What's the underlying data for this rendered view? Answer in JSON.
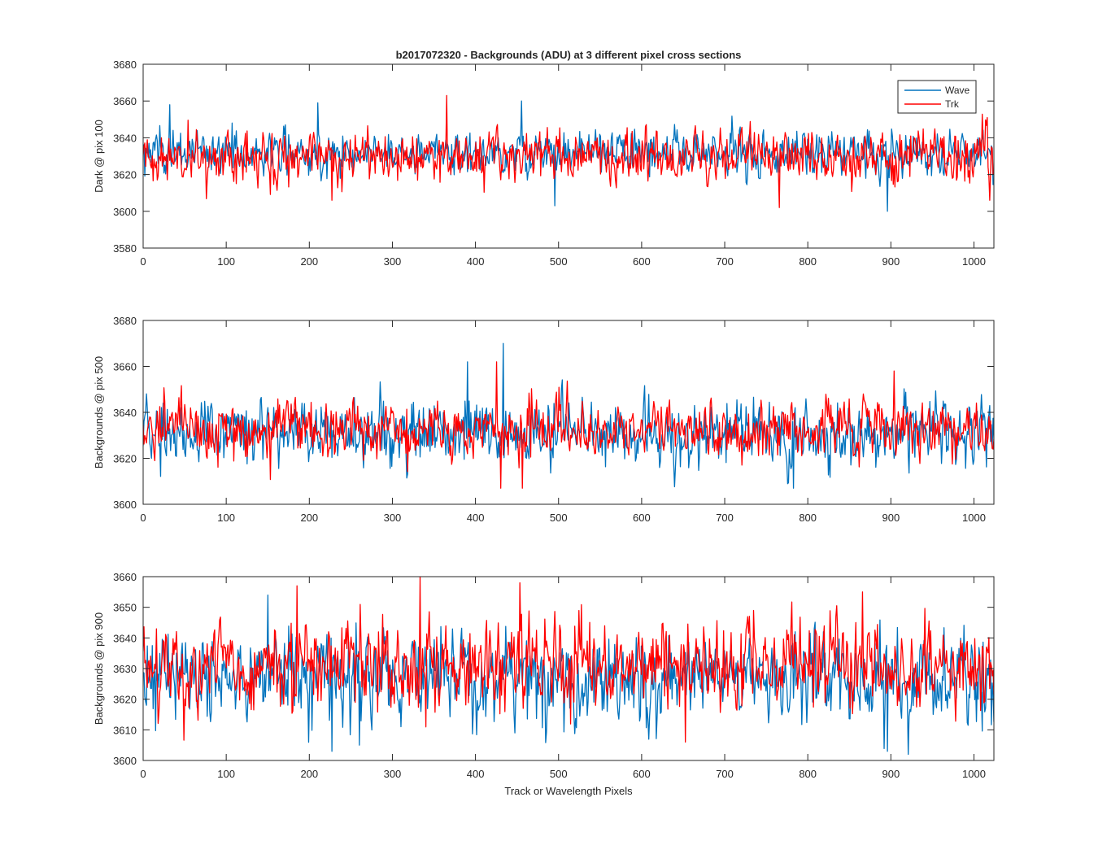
{
  "figure": {
    "title": "b2017072320 - Backgrounds (ADU) at 3 different pixel cross sections",
    "xlabel": "Track or Wavelength Pixels"
  },
  "legend": {
    "location": "top-right",
    "entries": [
      "Wave",
      "Trk"
    ]
  },
  "chart_data": [
    {
      "type": "line",
      "title": "b2017072320 - Backgrounds (ADU) at 3 different pixel cross sections",
      "xlabel": "",
      "ylabel": "Dark @ pix 100",
      "xlim": [
        0,
        1024
      ],
      "ylim": [
        3580,
        3680
      ],
      "xticks": [
        0,
        100,
        200,
        300,
        400,
        500,
        600,
        700,
        800,
        900,
        1000
      ],
      "yticks": [
        3580,
        3600,
        3620,
        3640,
        3660,
        3680
      ],
      "n_points": 1024,
      "series": [
        {
          "name": "Wave",
          "color": "#0072BD",
          "mean": 3632,
          "noise_sd": 6,
          "features": [
            {
              "x": 32,
              "y": 3658
            },
            {
              "x": 210,
              "y": 3659
            },
            {
              "x": 455,
              "y": 3660
            },
            {
              "x": 895,
              "y": 3600
            },
            {
              "x": 495,
              "y": 3603
            }
          ]
        },
        {
          "name": "Trk",
          "color": "#FF0000",
          "mean": 3630,
          "noise_sd": 7,
          "features": [
            {
              "x": 365,
              "y": 3663
            },
            {
              "x": 227,
              "y": 3606
            },
            {
              "x": 765,
              "y": 3602
            },
            {
              "x": 1015,
              "y": 3651
            },
            {
              "x": 1018,
              "y": 3606
            }
          ]
        }
      ]
    },
    {
      "type": "line",
      "title": "",
      "xlabel": "",
      "ylabel": "Backgrounds @ pix 500",
      "xlim": [
        0,
        1024
      ],
      "ylim": [
        3600,
        3680
      ],
      "xticks": [
        0,
        100,
        200,
        300,
        400,
        500,
        600,
        700,
        800,
        900,
        1000
      ],
      "yticks": [
        3600,
        3620,
        3640,
        3660,
        3680
      ],
      "n_points": 1024,
      "series": [
        {
          "name": "Wave",
          "color": "#0072BD",
          "mean": 3631,
          "noise_sd": 7,
          "features": [
            {
              "x": 433,
              "y": 3670
            },
            {
              "x": 390,
              "y": 3662
            },
            {
              "x": 782,
              "y": 3607
            }
          ]
        },
        {
          "name": "Trk",
          "color": "#FF0000",
          "mean": 3633,
          "noise_sd": 6,
          "features": [
            {
              "x": 425,
              "y": 3662
            },
            {
              "x": 430,
              "y": 3607
            },
            {
              "x": 456,
              "y": 3607
            },
            {
              "x": 903,
              "y": 3658
            }
          ]
        }
      ]
    },
    {
      "type": "line",
      "title": "",
      "xlabel": "Track or Wavelength Pixels",
      "ylabel": "Backgrounds @ pix 900",
      "xlim": [
        0,
        1024
      ],
      "ylim": [
        3600,
        3660
      ],
      "xticks": [
        0,
        100,
        200,
        300,
        400,
        500,
        600,
        700,
        800,
        900,
        1000
      ],
      "yticks": [
        3600,
        3610,
        3620,
        3630,
        3640,
        3650,
        3660
      ],
      "n_points": 1024,
      "series": [
        {
          "name": "Wave",
          "color": "#0072BD",
          "mean": 3627,
          "noise_sd": 7,
          "features": [
            {
              "x": 227,
              "y": 3603
            },
            {
              "x": 260,
              "y": 3605
            },
            {
              "x": 895,
              "y": 3603
            },
            {
              "x": 920,
              "y": 3602
            },
            {
              "x": 150,
              "y": 3654
            }
          ]
        },
        {
          "name": "Trk",
          "color": "#FF0000",
          "mean": 3631,
          "noise_sd": 7,
          "features": [
            {
              "x": 333,
              "y": 3660
            },
            {
              "x": 185,
              "y": 3657
            },
            {
              "x": 453,
              "y": 3658
            },
            {
              "x": 652,
              "y": 3606
            },
            {
              "x": 865,
              "y": 3655
            }
          ]
        }
      ]
    }
  ]
}
